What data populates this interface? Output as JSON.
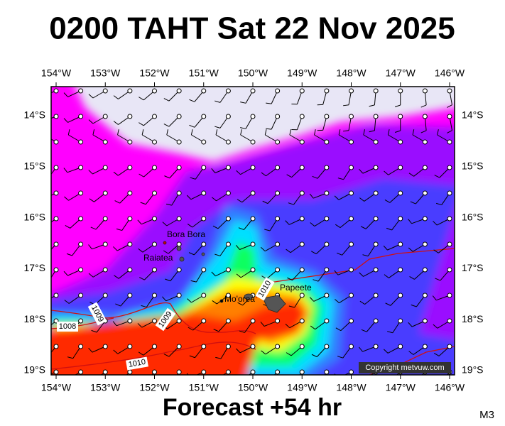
{
  "header": {
    "title": "0200 TAHT Sat 22 Nov 2025"
  },
  "map": {
    "lon_ticks": [
      "154°W",
      "153°W",
      "152°W",
      "151°W",
      "150°W",
      "149°W",
      "148°W",
      "147°W",
      "146°W"
    ],
    "lat_ticks": [
      "14°S",
      "15°S",
      "16°S",
      "17°S",
      "18°S",
      "19°S"
    ],
    "places": [
      "Bora Bora",
      "Raiatea",
      "Mo'orea",
      "Papeete"
    ],
    "isobar_labels": [
      "1008",
      "1009",
      "1009",
      "1010",
      "1010"
    ],
    "copyright": "Copyright metvuw.com"
  },
  "footer": {
    "forecast": "Forecast +54 hr",
    "model": "M3"
  }
}
